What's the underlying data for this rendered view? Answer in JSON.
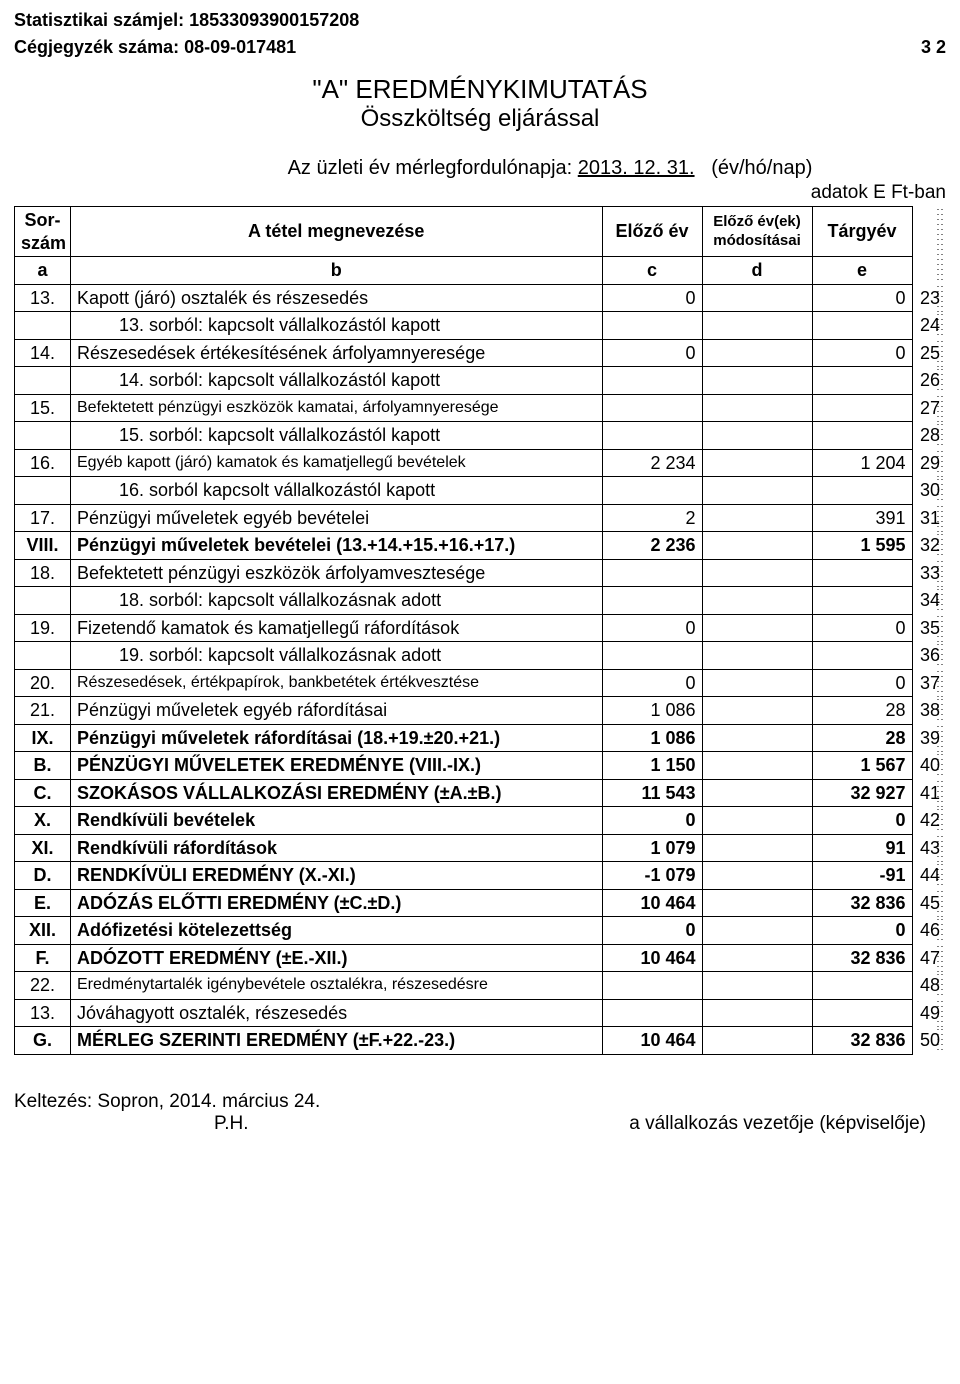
{
  "header": {
    "stat_label": "Statisztikai számjel: 18533093900157208",
    "ceg_label": "Cégjegyzék száma: 08-09-017481",
    "page_no": "3 2"
  },
  "title": {
    "main": "\"A\" EREDMÉNYKIMUTATÁS",
    "sub": "Összköltség eljárással"
  },
  "meta": {
    "line": "Az üzleti év mérlegfordulónapja:",
    "date": "2013. 12. 31.",
    "unit": "(év/hó/nap)",
    "adat": "adatok E Ft-ban"
  },
  "thead": {
    "sor1": "Sor-",
    "sor2": "szám",
    "name": "A tétel megnevezése",
    "prev": "Előző év",
    "mod1": "Előző év(ek)",
    "mod2": "módosításai",
    "targy": "Tárgyév",
    "a": "a",
    "b": "b",
    "c": "c",
    "d": "d",
    "e": "e"
  },
  "rows": [
    {
      "n": "13.",
      "name": "Kapott (járó) osztalék és részesedés",
      "c": "0",
      "e": "0",
      "side": "23",
      "bold": false,
      "indent": 0
    },
    {
      "n": "",
      "name": "13. sorból: kapcsolt vállalkozástól kapott",
      "c": "",
      "e": "",
      "side": "24",
      "bold": false,
      "indent": 2
    },
    {
      "n": "14.",
      "name": "Részesedések értékesítésének árfolyamnyeresége",
      "c": "0",
      "e": "0",
      "side": "25",
      "bold": false,
      "indent": 0
    },
    {
      "n": "",
      "name": "14. sorból: kapcsolt vállalkozástól kapott",
      "c": "",
      "e": "",
      "side": "26",
      "bold": false,
      "indent": 2
    },
    {
      "n": "15.",
      "name": "Befektetett pénzügyi eszközök kamatai, árfolyamnyeresége",
      "c": "",
      "e": "",
      "side": "27",
      "bold": false,
      "indent": 0,
      "small": true
    },
    {
      "n": "",
      "name": "15. sorból: kapcsolt vállalkozástól kapott",
      "c": "",
      "e": "",
      "side": "28",
      "bold": false,
      "indent": 2
    },
    {
      "n": "16.",
      "name": "Egyéb kapott (járó) kamatok és kamatjellegű bevételek",
      "c": "2 234",
      "e": "1 204",
      "side": "29",
      "bold": false,
      "indent": 0,
      "small": true
    },
    {
      "n": "",
      "name": "16. sorból kapcsolt vállalkozástól kapott",
      "c": "",
      "e": "",
      "side": "30",
      "bold": false,
      "indent": 2
    },
    {
      "n": "17.",
      "name": "Pénzügyi műveletek egyéb bevételei",
      "c": "2",
      "e": "391",
      "side": "31",
      "bold": false,
      "indent": 0
    },
    {
      "n": "VIII.",
      "name": "Pénzügyi műveletek bevételei (13.+14.+15.+16.+17.)",
      "c": "2 236",
      "e": "1 595",
      "side": "32",
      "bold": true,
      "indent": 0
    },
    {
      "n": "18.",
      "name": "Befektetett pénzügyi eszközök árfolyamvesztesége",
      "c": "",
      "e": "",
      "side": "33",
      "bold": false,
      "indent": 0
    },
    {
      "n": "",
      "name": "18. sorból: kapcsolt vállalkozásnak adott",
      "c": "",
      "e": "",
      "side": "34",
      "bold": false,
      "indent": 2
    },
    {
      "n": "19.",
      "name": "Fizetendő kamatok és kamatjellegű ráfordítások",
      "c": "0",
      "e": "0",
      "side": "35",
      "bold": false,
      "indent": 0
    },
    {
      "n": "",
      "name": "19. sorból: kapcsolt vállalkozásnak adott",
      "c": "",
      "e": "",
      "side": "36",
      "bold": false,
      "indent": 2
    },
    {
      "n": "20.",
      "name": "Részesedések, értékpapírok, bankbetétek értékvesztése",
      "c": "0",
      "e": "0",
      "side": "37",
      "bold": false,
      "indent": 0,
      "small": true
    },
    {
      "n": "21.",
      "name": "Pénzügyi műveletek egyéb ráfordításai",
      "c": "1 086",
      "e": "28",
      "side": "38",
      "bold": false,
      "indent": 0
    },
    {
      "n": "IX.",
      "name": "Pénzügyi műveletek ráfordításai (18.+19.±20.+21.)",
      "c": "1 086",
      "e": "28",
      "side": "39",
      "bold": true,
      "indent": 0
    },
    {
      "n": "B.",
      "name": "PÉNZÜGYI MŰVELETEK EREDMÉNYE (VIII.-IX.)",
      "c": "1 150",
      "e": "1 567",
      "side": "40",
      "bold": true,
      "indent": 0
    },
    {
      "n": "C.",
      "name": "SZOKÁSOS VÁLLALKOZÁSI EREDMÉNY (±A.±B.)",
      "c": "11 543",
      "e": "32 927",
      "side": "41",
      "bold": true,
      "indent": 0
    },
    {
      "n": "X.",
      "name": "Rendkívüli bevételek",
      "c": "0",
      "e": "0",
      "side": "42",
      "bold": true,
      "indent": 0
    },
    {
      "n": "XI.",
      "name": "Rendkívüli ráfordítások",
      "c": "1 079",
      "e": "91",
      "side": "43",
      "bold": true,
      "indent": 0
    },
    {
      "n": "D.",
      "name": "RENDKÍVÜLI EREDMÉNY     (X.-XI.)",
      "c": "-1 079",
      "e": "-91",
      "side": "44",
      "bold": true,
      "indent": 0
    },
    {
      "n": "E.",
      "name": "ADÓZÁS ELŐTTI EREDMÉNY (±C.±D.)",
      "c": "10 464",
      "e": "32 836",
      "side": "45",
      "bold": true,
      "indent": 0
    },
    {
      "n": "XII.",
      "name": "Adófizetési kötelezettség",
      "c": "0",
      "e": "0",
      "side": "46",
      "bold": true,
      "indent": 0
    },
    {
      "n": "F.",
      "name": "ADÓZOTT EREDMÉNY (±E.-XII.)",
      "c": "10 464",
      "e": "32 836",
      "side": "47",
      "bold": true,
      "indent": 0
    },
    {
      "n": "22.",
      "name": "Eredménytartalék igénybevétele osztalékra, részesedésre",
      "c": "",
      "e": "",
      "side": "48",
      "bold": false,
      "indent": 0,
      "small": true
    },
    {
      "n": "13.",
      "name": "Jóváhagyott osztalék, részesedés",
      "c": "",
      "e": "",
      "side": "49",
      "bold": false,
      "indent": 0
    },
    {
      "n": "G.",
      "name": "MÉRLEG SZERINTI EREDMÉNY (±F.+22.-23.)",
      "c": "10 464",
      "e": "32 836",
      "side": "50",
      "bold": true,
      "indent": 0
    }
  ],
  "footer": {
    "kelt": "Keltezés: Sopron, 2014. március 24.",
    "ph": "P.H.",
    "sign": "a vállalkozás vezetője (képviselője)"
  }
}
